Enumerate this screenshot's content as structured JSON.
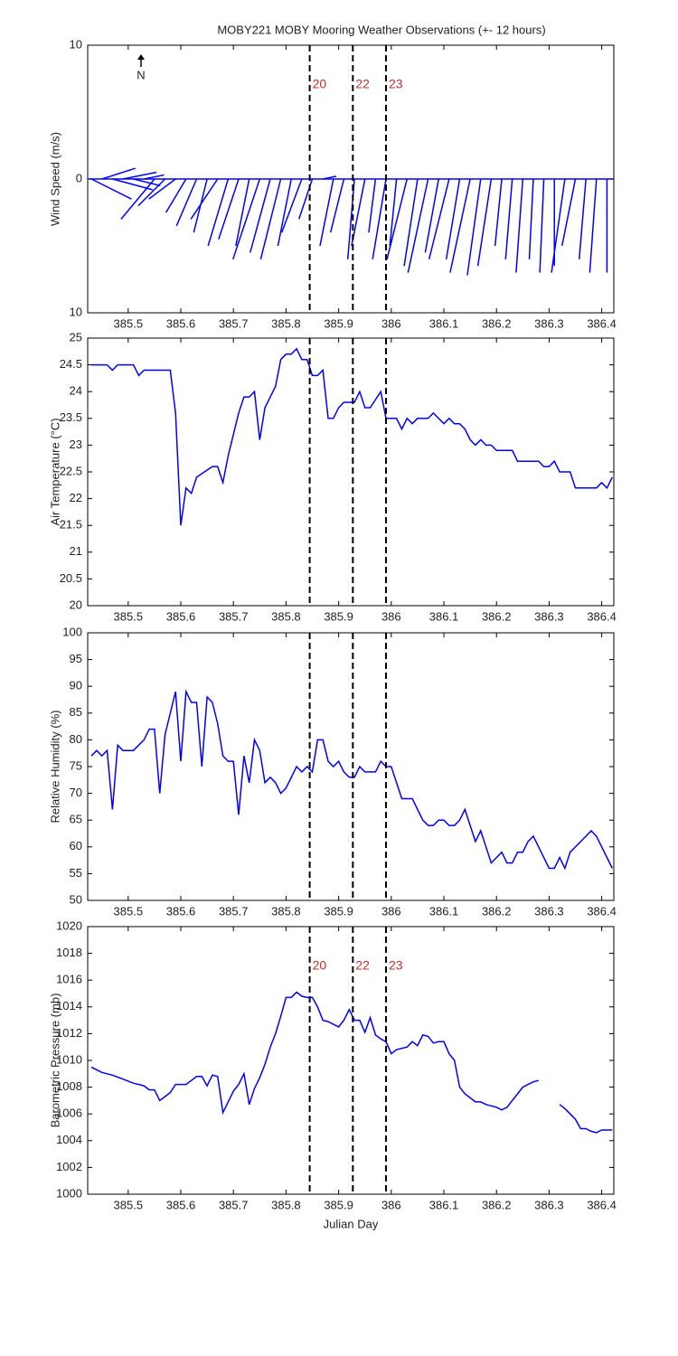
{
  "chart_data": [
    {
      "type": "stick",
      "title": "MOBY221 MOBY Mooring Weather Observations (+- 12 hours)",
      "y_label": "Wind Speed (m/s)",
      "north_label": "N",
      "xlim": [
        385.423,
        386.423
      ],
      "xticks": [
        385.5,
        385.6,
        385.7,
        385.8,
        385.9,
        386,
        386.1,
        386.2,
        386.3,
        386.4
      ],
      "ylim": [
        -10,
        10
      ],
      "yticks": [
        {
          "value": -10,
          "label": "10"
        },
        0,
        10
      ],
      "vlines": [
        385.845,
        385.927,
        385.99
      ],
      "vline_labels": [
        "20",
        "22",
        "23"
      ],
      "color": "#0000ff",
      "x": [
        385.43,
        385.45,
        385.47,
        385.49,
        385.51,
        385.53,
        385.55,
        385.57,
        385.59,
        385.61,
        385.63,
        385.65,
        385.67,
        385.69,
        385.71,
        385.73,
        385.75,
        385.77,
        385.79,
        385.81,
        385.83,
        385.85,
        385.87,
        385.89,
        385.91,
        385.93,
        385.95,
        385.97,
        385.99,
        386.01,
        386.03,
        386.05,
        386.07,
        386.09,
        386.11,
        386.13,
        386.15,
        386.17,
        386.19,
        386.21,
        386.23,
        386.25,
        386.27,
        386.29,
        386.31,
        386.33,
        386.35,
        386.37,
        386.39,
        386.41
      ],
      "u": [
        3,
        2.5,
        3,
        2.5,
        2,
        1.5,
        -2.5,
        -2,
        -2,
        -1.5,
        -1.5,
        -1,
        -2,
        -1.5,
        -1.5,
        -1,
        -2,
        -1.5,
        -1.5,
        -1,
        -1.5,
        -1,
        1,
        -1,
        -1,
        -0.5,
        -1,
        -0.5,
        -1,
        -0.5,
        -1.5,
        -1,
        -1.5,
        -1,
        -1.5,
        -1,
        -1.5,
        -1,
        -1,
        -0.5,
        -0.5,
        -0.5,
        -0.3,
        -0.3,
        0,
        -1,
        -1,
        -0.5,
        -0.5,
        0
      ],
      "v": [
        -1.5,
        0.8,
        -0.8,
        0.5,
        -0.5,
        0.3,
        -3,
        -2,
        -1.5,
        -2.5,
        -3.5,
        -4,
        -3,
        -5,
        -4.5,
        -5,
        -6,
        -5.5,
        -6,
        -5,
        -4,
        -3,
        0.2,
        -5,
        -4,
        -6,
        -5,
        -4,
        -6,
        -5,
        -6,
        -6.5,
        -7,
        -5.5,
        -6,
        -6,
        -7,
        -7.2,
        -6.5,
        -5,
        -6,
        -7,
        -6,
        -7,
        -6.5,
        -7,
        -5,
        -6,
        -7,
        -7
      ]
    },
    {
      "type": "line",
      "y_label": "Air Temperature (°C)",
      "xlim": [
        385.423,
        386.423
      ],
      "xticks": [
        385.5,
        385.6,
        385.7,
        385.8,
        385.9,
        386,
        386.1,
        386.2,
        386.3,
        386.4
      ],
      "ylim": [
        20,
        25
      ],
      "yticks": [
        20,
        20.5,
        21,
        21.5,
        22,
        22.5,
        23,
        23.5,
        24,
        24.5,
        25
      ],
      "vlines": [
        385.845,
        385.927,
        385.99
      ],
      "color": "#0000ff",
      "x": [
        385.43,
        385.46,
        385.47,
        385.48,
        385.51,
        385.52,
        385.53,
        385.56,
        385.58,
        385.59,
        385.6,
        385.61,
        385.62,
        385.63,
        385.66,
        385.67,
        385.68,
        385.69,
        385.71,
        385.72,
        385.73,
        385.74,
        385.75,
        385.76,
        385.78,
        385.79,
        385.8,
        385.81,
        385.82,
        385.83,
        385.84,
        385.85,
        385.86,
        385.87,
        385.88,
        385.89,
        385.9,
        385.91,
        385.93,
        385.94,
        385.95,
        385.96,
        385.98,
        385.99,
        386.01,
        386.02,
        386.03,
        386.04,
        386.05,
        386.07,
        386.08,
        386.1,
        386.11,
        386.12,
        386.13,
        386.14,
        386.15,
        386.16,
        386.17,
        386.18,
        386.19,
        386.2,
        386.23,
        386.24,
        386.28,
        386.29,
        386.3,
        386.31,
        386.32,
        386.34,
        386.35,
        386.39,
        386.4,
        386.41,
        386.42
      ],
      "values": [
        24.5,
        24.5,
        24.4,
        24.5,
        24.5,
        24.3,
        24.4,
        24.4,
        24.4,
        23.6,
        21.5,
        22.2,
        22.1,
        22.4,
        22.6,
        22.6,
        22.3,
        22.8,
        23.6,
        23.9,
        23.9,
        24.0,
        23.1,
        23.7,
        24.1,
        24.6,
        24.7,
        24.7,
        24.8,
        24.6,
        24.6,
        24.3,
        24.3,
        24.4,
        23.5,
        23.5,
        23.7,
        23.8,
        23.8,
        24.0,
        23.7,
        23.7,
        24.0,
        23.5,
        23.5,
        23.3,
        23.5,
        23.4,
        23.5,
        23.5,
        23.6,
        23.4,
        23.5,
        23.4,
        23.4,
        23.3,
        23.1,
        23.0,
        23.1,
        23.0,
        23.0,
        22.9,
        22.9,
        22.7,
        22.7,
        22.6,
        22.6,
        22.7,
        22.5,
        22.5,
        22.2,
        22.2,
        22.3,
        22.2,
        22.4
      ]
    },
    {
      "type": "line",
      "y_label": "Relative Humidity (%)",
      "xlim": [
        385.423,
        386.423
      ],
      "xticks": [
        385.5,
        385.6,
        385.7,
        385.8,
        385.9,
        386,
        386.1,
        386.2,
        386.3,
        386.4
      ],
      "ylim": [
        50,
        100
      ],
      "yticks": [
        50,
        55,
        60,
        65,
        70,
        75,
        80,
        85,
        90,
        95,
        100
      ],
      "vlines": [
        385.845,
        385.927,
        385.99
      ],
      "color": "#0000ff",
      "x": [
        385.43,
        385.44,
        385.45,
        385.46,
        385.47,
        385.48,
        385.49,
        385.51,
        385.53,
        385.54,
        385.55,
        385.56,
        385.57,
        385.59,
        385.6,
        385.61,
        385.62,
        385.63,
        385.64,
        385.65,
        385.66,
        385.67,
        385.68,
        385.69,
        385.7,
        385.71,
        385.72,
        385.73,
        385.74,
        385.75,
        385.76,
        385.77,
        385.78,
        385.79,
        385.8,
        385.82,
        385.83,
        385.84,
        385.85,
        385.86,
        385.87,
        385.88,
        385.89,
        385.9,
        385.91,
        385.92,
        385.93,
        385.94,
        385.95,
        385.97,
        385.98,
        385.99,
        386.0,
        386.02,
        386.04,
        386.05,
        386.06,
        386.07,
        386.08,
        386.09,
        386.1,
        386.11,
        386.12,
        386.13,
        386.14,
        386.15,
        386.16,
        386.17,
        386.18,
        386.19,
        386.2,
        386.21,
        386.22,
        386.23,
        386.24,
        386.25,
        386.26,
        386.27,
        386.28,
        386.3,
        386.31,
        386.32,
        386.33,
        386.34,
        386.37,
        386.38,
        386.39,
        386.42
      ],
      "values": [
        77,
        78,
        77,
        78,
        67,
        79,
        78,
        78,
        80,
        82,
        82,
        70,
        81,
        89,
        76,
        89,
        87,
        87,
        75,
        88,
        87,
        83,
        77,
        76,
        76,
        66,
        77,
        72,
        80,
        78,
        72,
        73,
        72,
        70,
        71,
        75,
        74,
        75,
        74,
        80,
        80,
        76,
        75,
        76,
        74,
        73,
        73,
        75,
        74,
        74,
        76,
        75,
        75,
        69,
        69,
        67,
        65,
        64,
        64,
        65,
        65,
        64,
        64,
        65,
        67,
        64,
        61,
        63,
        60,
        57,
        58,
        59,
        57,
        57,
        59,
        59,
        61,
        62,
        60,
        56,
        56,
        58,
        56,
        59,
        62,
        63,
        62,
        56
      ]
    },
    {
      "type": "line",
      "y_label": "Barometric Pressure (mb)",
      "x_label": "Julian Day",
      "xlim": [
        385.423,
        386.423
      ],
      "xticks": [
        385.5,
        385.6,
        385.7,
        385.8,
        385.9,
        386,
        386.1,
        386.2,
        386.3,
        386.4
      ],
      "ylim": [
        1000,
        1020
      ],
      "yticks": [
        1000,
        1002,
        1004,
        1006,
        1008,
        1010,
        1012,
        1014,
        1016,
        1018,
        1020
      ],
      "vlines": [
        385.845,
        385.927,
        385.99
      ],
      "vline_labels": [
        "20",
        "22",
        "23"
      ],
      "color": "#0000ff",
      "x": [
        385.43,
        385.44,
        385.45,
        385.47,
        385.49,
        385.51,
        385.53,
        385.54,
        385.55,
        385.56,
        385.57,
        385.58,
        385.59,
        385.61,
        385.62,
        385.63,
        385.64,
        385.65,
        385.66,
        385.67,
        385.68,
        385.69,
        385.7,
        385.71,
        385.72,
        385.73,
        385.74,
        385.75,
        385.76,
        385.77,
        385.78,
        385.79,
        385.8,
        385.81,
        385.82,
        385.83,
        385.84,
        385.85,
        385.86,
        385.87,
        385.88,
        385.9,
        385.91,
        385.92,
        385.93,
        385.94,
        385.95,
        385.96,
        385.97,
        385.98,
        385.99,
        386.0,
        386.01,
        386.03,
        386.04,
        386.05,
        386.06,
        386.07,
        386.08,
        386.09,
        386.1,
        386.11,
        386.12,
        386.13,
        386.14,
        386.15,
        386.16,
        386.17,
        386.18,
        386.19,
        386.2,
        386.21,
        386.22,
        386.23,
        386.24,
        386.25,
        386.26,
        386.27,
        386.28,
        386.29,
        386.3,
        386.32,
        386.33,
        386.34,
        386.35,
        386.36,
        386.37,
        386.38,
        386.39,
        386.4,
        386.41,
        386.42
      ],
      "values": [
        1009.5,
        1009.3,
        1009.1,
        1008.9,
        1008.6,
        1008.3,
        1008.1,
        1007.8,
        1007.8,
        1007.0,
        1007.3,
        1007.6,
        1008.2,
        1008.2,
        1008.5,
        1008.8,
        1008.8,
        1008.1,
        1008.9,
        1008.8,
        1006.1,
        1006.9,
        1007.7,
        1008.2,
        1009.0,
        1006.7,
        1007.9,
        1008.7,
        1009.7,
        1011.0,
        1012.0,
        1013.3,
        1014.7,
        1014.7,
        1015.1,
        1014.8,
        1014.7,
        1014.7,
        1014.0,
        1013.0,
        1012.9,
        1012.5,
        1013.0,
        1013.8,
        1013.0,
        1013.0,
        1012.1,
        1013.2,
        1011.9,
        1011.6,
        1011.4,
        1010.5,
        1010.8,
        1011.0,
        1011.4,
        1011.1,
        1011.9,
        1011.8,
        1011.3,
        1011.4,
        1011.4,
        1010.5,
        1010.0,
        1008.0,
        1007.5,
        1007.2,
        1006.9,
        1006.9,
        1006.7,
        1006.6,
        1006.5,
        1006.3,
        1006.5,
        1007.0,
        1007.5,
        1008.0,
        1008.2,
        1008.4,
        1008.5,
        null,
        null,
        1006.7,
        1006.4,
        1006.0,
        1005.6,
        1004.9,
        1004.9,
        1004.7,
        1004.6,
        1004.8,
        1004.8,
        1004.8
      ]
    }
  ]
}
